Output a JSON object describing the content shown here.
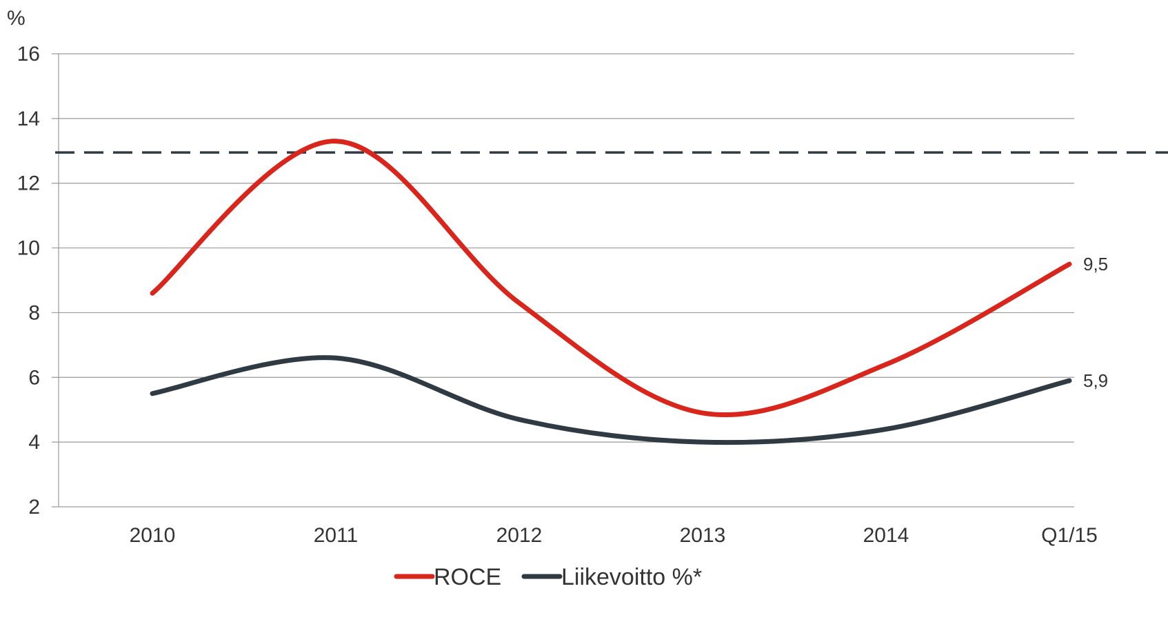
{
  "chart_data": {
    "type": "line",
    "title": "",
    "xlabel": "",
    "ylabel": "%",
    "categories": [
      "2010",
      "2011",
      "2012",
      "2013",
      "2014",
      "Q1/15"
    ],
    "ylim": [
      2,
      16
    ],
    "yticks": [
      2,
      4,
      6,
      8,
      10,
      12,
      14,
      16
    ],
    "grid": true,
    "smooth": true,
    "legend_position": "bottom",
    "series": [
      {
        "name": "ROCE",
        "color": "#d9261c",
        "values": [
          8.6,
          13.3,
          8.3,
          4.9,
          6.4,
          9.5
        ]
      },
      {
        "name": "Liikevoitto %*",
        "color": "#2f3a43",
        "values": [
          5.5,
          6.6,
          4.7,
          4.0,
          4.4,
          5.9
        ]
      }
    ],
    "reference_line": {
      "value": 12.95,
      "style": "dashed",
      "color": "#2f3a43"
    },
    "end_labels": [
      "9,5",
      "5,9"
    ]
  }
}
